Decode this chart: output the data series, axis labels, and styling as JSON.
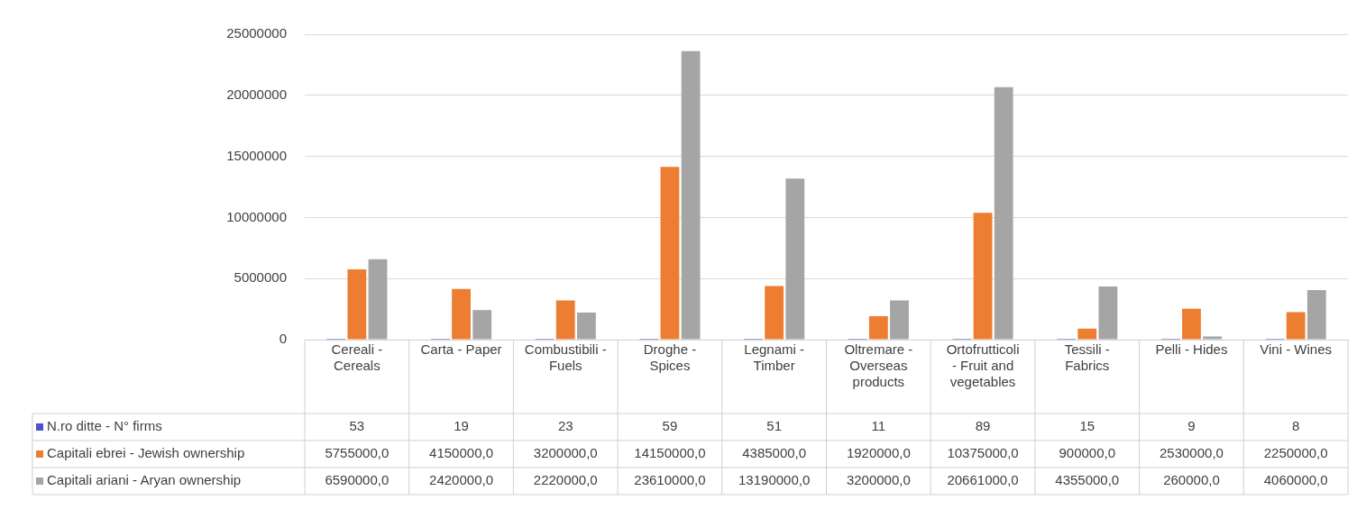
{
  "chart_data": {
    "type": "bar",
    "categories": [
      "Cereali - Cereals",
      "Carta - Paper",
      "Combustibili - Fuels",
      "Droghe - Spices",
      "Legnami - Timber",
      "Oltremare - Overseas products",
      "Ortofrutticoli - Fruit and vegetables",
      "Tessili - Fabrics",
      "Pelli - Hides",
      "Vini - Wines"
    ],
    "series": [
      {
        "name": "N.ro ditte - N° firms",
        "color": "#5050c8",
        "values": [
          53,
          19,
          23,
          59,
          51,
          11,
          89,
          15,
          9,
          8
        ],
        "value_labels": [
          "53",
          "19",
          "23",
          "59",
          "51",
          "11",
          "89",
          "15",
          "9",
          "8"
        ]
      },
      {
        "name": "Capitali ebrei - Jewish ownership",
        "color": "#ed7d31",
        "values": [
          5755000,
          4150000,
          3200000,
          14150000,
          4385000,
          1920000,
          10375000,
          900000,
          2530000,
          2250000
        ],
        "value_labels": [
          "5755000,0",
          "4150000,0",
          "3200000,0",
          "14150000,0",
          "4385000,0",
          "1920000,0",
          "10375000,0",
          "900000,0",
          "2530000,0",
          "2250000,0"
        ]
      },
      {
        "name": "Capitali ariani - Aryan ownership",
        "color": "#a5a5a5",
        "values": [
          6590000,
          2420000,
          2220000,
          23610000,
          13190000,
          3200000,
          20661000,
          4355000,
          260000,
          4060000
        ],
        "value_labels": [
          "6590000,0",
          "2420000,0",
          "2220000,0",
          "23610000,0",
          "13190000,0",
          "3200000,0",
          "20661000,0",
          "4355000,0",
          "260000,0",
          "4060000,0"
        ]
      }
    ],
    "ylim": [
      0,
      25000000
    ],
    "yticks": [
      0,
      5000000,
      10000000,
      15000000,
      20000000,
      25000000
    ],
    "grid": "y",
    "legend": "bottom"
  }
}
